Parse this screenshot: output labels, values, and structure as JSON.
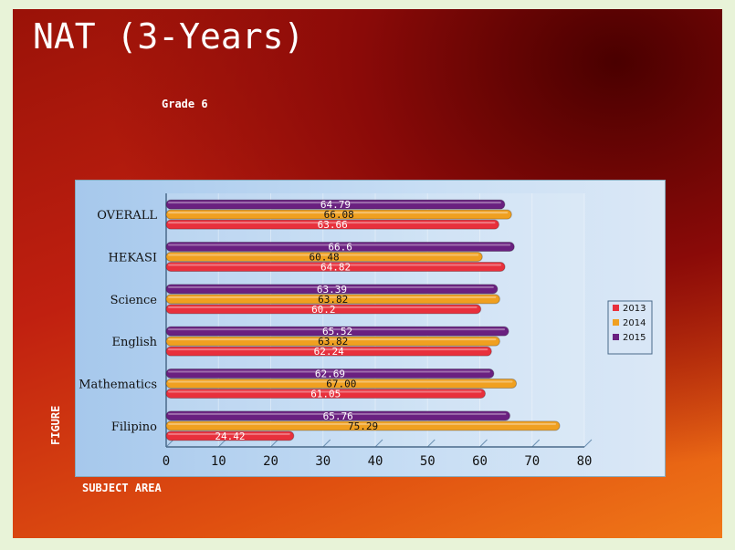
{
  "title": "NAT (3-Years)",
  "subtitle": "Grade 6",
  "chart_data": {
    "type": "bar",
    "orientation": "horizontal",
    "categories": [
      "OVERALL",
      "HEKASI",
      "Science",
      "English",
      "Mathematics",
      "Filipino"
    ],
    "series": [
      {
        "name": "2013",
        "color": "#e8303c",
        "values": [
          63.66,
          64.82,
          60.2,
          62.24,
          61.05,
          24.42
        ],
        "labels": [
          "63.66",
          "64.82",
          "60.2",
          "62.24",
          "61.05",
          "24.42"
        ]
      },
      {
        "name": "2014",
        "color": "#f0a020",
        "values": [
          66.08,
          60.48,
          63.82,
          63.82,
          67.0,
          75.29
        ],
        "labels": [
          "66.08",
          "60.48",
          "63.82",
          "63.82",
          "67.00",
          "75.29"
        ]
      },
      {
        "name": "2015",
        "color": "#6a2080",
        "values": [
          64.79,
          66.6,
          63.39,
          65.52,
          62.69,
          65.76
        ],
        "labels": [
          "64.79",
          "66.6",
          "63.39",
          "65.52",
          "62.69",
          "65.76"
        ]
      }
    ],
    "xlim": [
      0,
      80
    ],
    "xticks": [
      "0",
      "10",
      "20",
      "30",
      "40",
      "50",
      "60",
      "70",
      "80"
    ],
    "xlabel": "SUBJECT AREA",
    "ylabel": "FIGURE",
    "legend": "right"
  }
}
